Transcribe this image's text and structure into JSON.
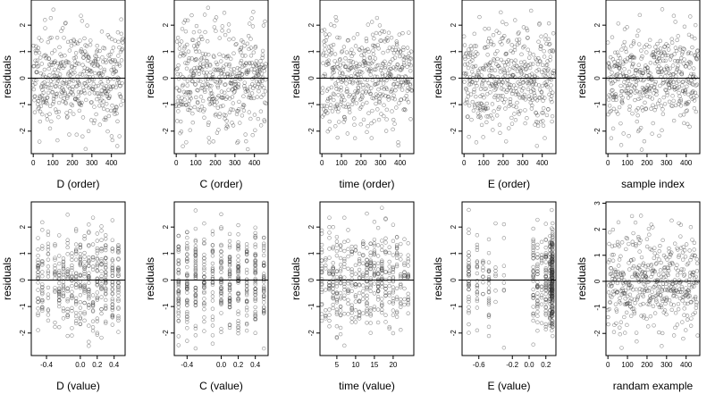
{
  "chart_data": [
    {
      "type": "scatter",
      "xlabel": "D (order)",
      "ylabel": "residuals",
      "xticks": [
        0,
        100,
        200,
        300,
        400
      ],
      "yticks": [
        -2,
        -1,
        0,
        1,
        2
      ],
      "xlim": [
        -10,
        470
      ],
      "ylim": [
        -2.85,
        2.95
      ],
      "refline_y": 0,
      "x_kind": "order",
      "n": 460,
      "seed": 11
    },
    {
      "type": "scatter",
      "xlabel": "C (order)",
      "ylabel": "residuals",
      "xticks": [
        0,
        100,
        200,
        300,
        400
      ],
      "yticks": [
        -2,
        -1,
        0,
        1,
        2
      ],
      "xlim": [
        -10,
        470
      ],
      "ylim": [
        -2.85,
        2.95
      ],
      "refline_y": 0,
      "x_kind": "order",
      "n": 460,
      "seed": 23
    },
    {
      "type": "scatter",
      "xlabel": "time (order)",
      "ylabel": "residuals",
      "xticks": [
        0,
        100,
        200,
        300,
        400
      ],
      "yticks": [
        -2,
        -1,
        0,
        1,
        2
      ],
      "xlim": [
        -10,
        470
      ],
      "ylim": [
        -2.85,
        2.95
      ],
      "refline_y": 0,
      "x_kind": "order",
      "n": 460,
      "seed": 37
    },
    {
      "type": "scatter",
      "xlabel": "E (order)",
      "ylabel": "residuals",
      "xticks": [
        0,
        100,
        200,
        300,
        400
      ],
      "yticks": [
        -2,
        -1,
        0,
        1,
        2
      ],
      "xlim": [
        -10,
        470
      ],
      "ylim": [
        -2.85,
        2.95
      ],
      "refline_y": 0,
      "x_kind": "order",
      "n": 460,
      "seed": 41
    },
    {
      "type": "scatter",
      "xlabel": "sample index",
      "ylabel": "residuals",
      "xticks": [
        0,
        100,
        200,
        300,
        400
      ],
      "yticks": [
        -2,
        -1,
        0,
        1,
        2
      ],
      "xlim": [
        -10,
        470
      ],
      "ylim": [
        -2.85,
        2.95
      ],
      "refline_y": 0,
      "x_kind": "order",
      "n": 460,
      "seed": 53
    },
    {
      "type": "scatter",
      "xlabel": "D (value)",
      "ylabel": "residuals",
      "xticks": [
        -0.4,
        0.0,
        0.2,
        0.4
      ],
      "xtick_labels": [
        "-0.4",
        "0.0",
        "0.2",
        "0.4"
      ],
      "yticks": [
        -2,
        -1,
        0,
        1,
        2
      ],
      "xlim": [
        -0.58,
        0.53
      ],
      "ylim": [
        -2.85,
        2.95
      ],
      "refline_y": 0,
      "x_kind": "value",
      "x_levels": [
        -0.5,
        -0.45,
        -0.38,
        -0.3,
        -0.25,
        -0.2,
        -0.15,
        -0.1,
        -0.05,
        0.0,
        0.05,
        0.1,
        0.15,
        0.2,
        0.25,
        0.3,
        0.38,
        0.45
      ],
      "n": 460,
      "seed": 61
    },
    {
      "type": "scatter",
      "xlabel": "C (value)",
      "ylabel": "residuals",
      "xticks": [
        -0.4,
        0.0,
        0.2,
        0.4
      ],
      "xtick_labels": [
        "-0.4",
        "0.0",
        "0.2",
        "0.4"
      ],
      "yticks": [
        -2,
        -1,
        0,
        1,
        2
      ],
      "xlim": [
        -0.55,
        0.55
      ],
      "ylim": [
        -2.85,
        2.95
      ],
      "refline_y": 0,
      "x_kind": "value",
      "x_levels": [
        -0.5,
        -0.4,
        -0.3,
        -0.2,
        -0.1,
        0.0,
        0.1,
        0.2,
        0.3,
        0.4,
        0.5
      ],
      "n": 460,
      "seed": 71
    },
    {
      "type": "scatter",
      "xlabel": "time (value)",
      "ylabel": "residuals",
      "xticks": [
        5,
        10,
        15,
        20
      ],
      "xtick_labels": [
        "5",
        "10",
        "15",
        "20"
      ],
      "yticks": [
        -2,
        -1,
        0,
        1,
        2
      ],
      "xlim": [
        0.5,
        25.5
      ],
      "ylim": [
        -2.85,
        2.95
      ],
      "refline_y": 0,
      "x_kind": "value",
      "x_levels": [
        1,
        2,
        3,
        4,
        5,
        6,
        7,
        8,
        9,
        10,
        11,
        12,
        13,
        14,
        15,
        16,
        17,
        18,
        19,
        20,
        21,
        22,
        23,
        24
      ],
      "n": 460,
      "seed": 83
    },
    {
      "type": "scatter",
      "xlabel": "E (value)",
      "ylabel": "residuals",
      "xticks": [
        -0.6,
        -0.2,
        0.0,
        0.2
      ],
      "xtick_labels": [
        "-0.6",
        "-0.2",
        "0.0",
        "0.2"
      ],
      "yticks": [
        -2,
        -1,
        0,
        1,
        2
      ],
      "xlim": [
        -0.8,
        0.32
      ],
      "ylim": [
        -2.85,
        2.95
      ],
      "refline_y": 0,
      "x_kind": "value",
      "x_levels": [
        -0.72,
        -0.62,
        -0.55,
        -0.48,
        -0.4,
        -0.3,
        0.05,
        0.1,
        0.15,
        0.2,
        0.25,
        0.27,
        0.28
      ],
      "x_weights": [
        4,
        2,
        1,
        2,
        1,
        1,
        3,
        4,
        3,
        5,
        6,
        8,
        10
      ],
      "n": 460,
      "seed": 97
    },
    {
      "type": "scatter",
      "xlabel": "randam example",
      "ylabel": "residuals",
      "xticks": [
        0,
        100,
        200,
        300,
        400
      ],
      "yticks": [
        -2,
        -1,
        0,
        1,
        2,
        3
      ],
      "xlim": [
        -10,
        470
      ],
      "ylim": [
        -2.85,
        3.05
      ],
      "refline_y": 0,
      "x_kind": "order",
      "n": 460,
      "seed": 103
    }
  ]
}
